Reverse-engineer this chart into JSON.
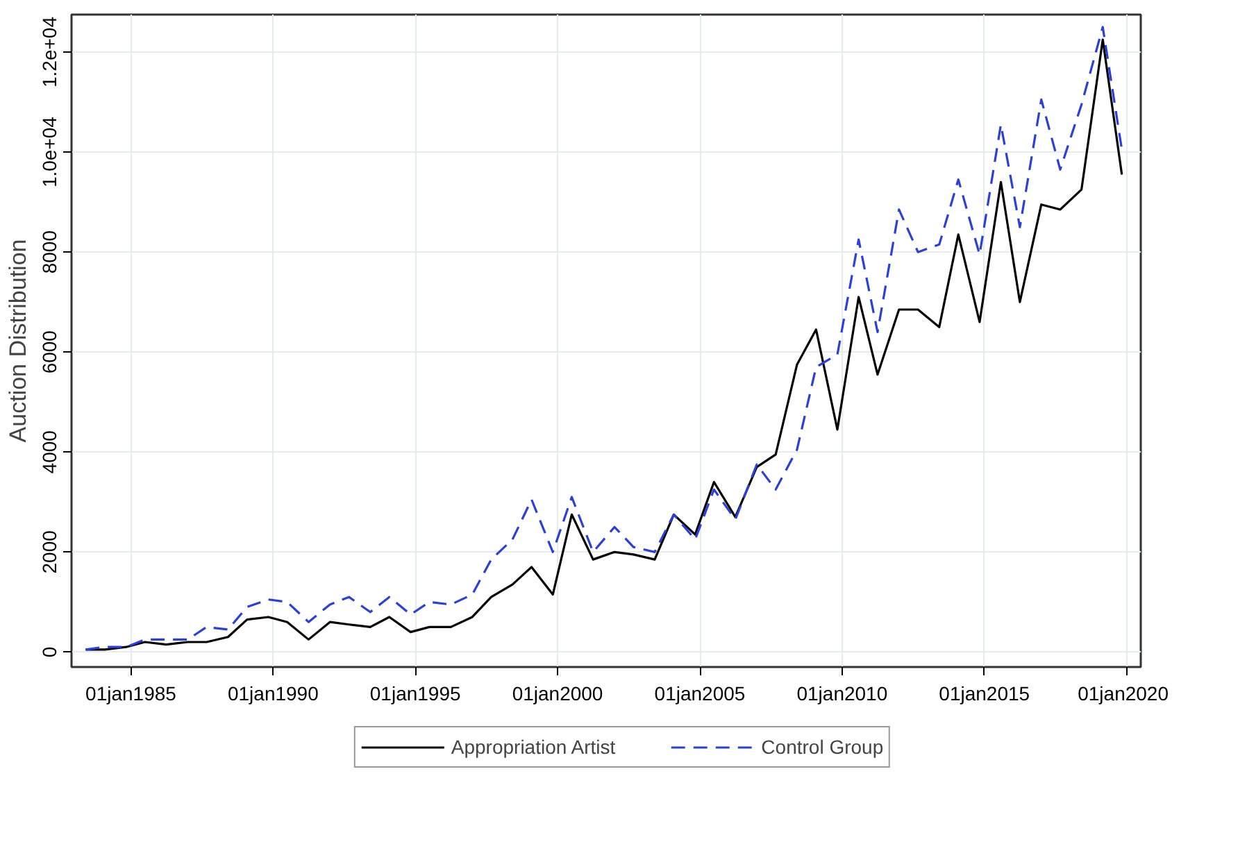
{
  "chart_data": {
    "type": "line",
    "ylabel": "Auction Distribution",
    "x": [
      "1983-06",
      "1984-02",
      "1984-11",
      "1985-07",
      "1986-04",
      "1987-01",
      "1987-09",
      "1988-06",
      "1989-02",
      "1989-11",
      "1990-07",
      "1991-04",
      "1992-01",
      "1992-09",
      "1993-06",
      "1994-02",
      "1994-11",
      "1995-07",
      "1996-04",
      "1997-01",
      "1997-09",
      "1998-06",
      "1999-02",
      "1999-11",
      "2000-07",
      "2001-04",
      "2002-01",
      "2002-09",
      "2003-06",
      "2004-02",
      "2004-11",
      "2005-07",
      "2006-04",
      "2007-01",
      "2007-09",
      "2008-06",
      "2009-02",
      "2009-11",
      "2010-08",
      "2011-04",
      "2012-01",
      "2012-09",
      "2013-06",
      "2014-02",
      "2014-11",
      "2015-08",
      "2016-04",
      "2017-01",
      "2017-09",
      "2018-06",
      "2019-03",
      "2019-11"
    ],
    "series": [
      {
        "name": "Appropriation Artist",
        "color": "#000000",
        "line_style": "solid",
        "values": [
          50,
          50,
          100,
          200,
          150,
          200,
          200,
          300,
          650,
          700,
          600,
          250,
          600,
          550,
          500,
          700,
          400,
          500,
          500,
          700,
          1100,
          1350,
          1700,
          1150,
          2750,
          1850,
          2000,
          1950,
          1850,
          2750,
          2350,
          3400,
          2700,
          3700,
          3950,
          5750,
          6450,
          4450,
          7100,
          5550,
          6850,
          6850,
          6500,
          8350,
          6600,
          9400,
          7000,
          8950,
          8850,
          9250,
          12250,
          9550
        ]
      },
      {
        "name": "Control Group",
        "color": "#2a3fe0",
        "line_style": "dashed",
        "values": [
          50,
          100,
          100,
          250,
          250,
          250,
          500,
          450,
          900,
          1050,
          1000,
          600,
          950,
          1100,
          800,
          1100,
          750,
          1000,
          950,
          1150,
          1850,
          2250,
          3050,
          2000,
          3100,
          2000,
          2500,
          2100,
          2000,
          2750,
          2250,
          3250,
          2650,
          3750,
          3250,
          4050,
          5700,
          5950,
          8250,
          6400,
          8850,
          8000,
          8150,
          9450,
          7950,
          10550,
          8500,
          11050,
          9650,
          10950,
          12500,
          10050
        ]
      }
    ],
    "xlim": [
      "1982-12",
      "2020-07"
    ],
    "ylim": [
      -300,
      12750
    ],
    "xticks": [
      {
        "value": "1985-01-01",
        "label": "01jan1985"
      },
      {
        "value": "1990-01-01",
        "label": "01jan1990"
      },
      {
        "value": "1995-01-01",
        "label": "01jan1995"
      },
      {
        "value": "2000-01-01",
        "label": "01jan2000"
      },
      {
        "value": "2005-01-01",
        "label": "01jan2005"
      },
      {
        "value": "2010-01-01",
        "label": "01jan2010"
      },
      {
        "value": "2015-01-01",
        "label": "01jan2015"
      },
      {
        "value": "2020-01-01",
        "label": "01jan2020"
      }
    ],
    "yticks": [
      0,
      2000,
      4000,
      6000,
      8000,
      {
        "value": 10000,
        "label": "1.0e+04"
      },
      {
        "value": 12000,
        "label": "1.2e+04"
      }
    ],
    "grid": true,
    "legend": "bottom"
  }
}
